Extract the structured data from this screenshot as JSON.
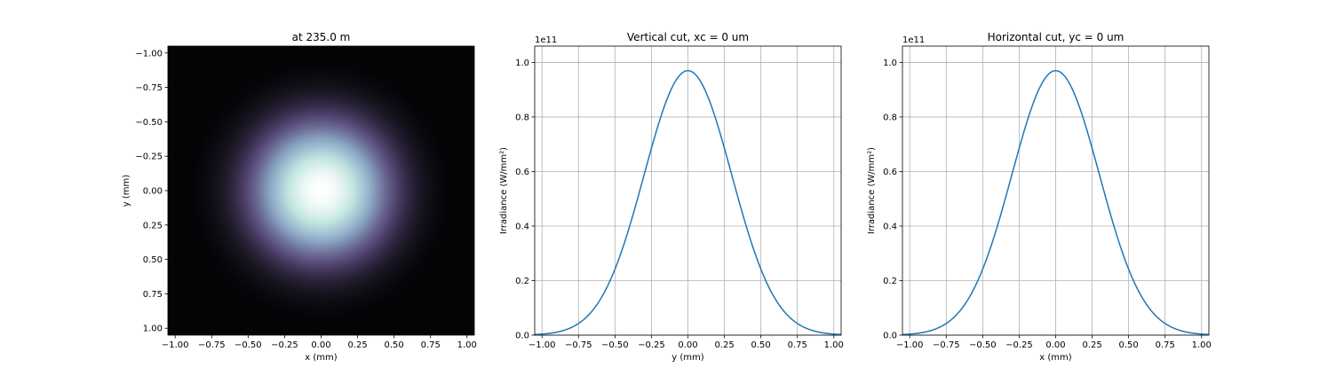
{
  "chart_data": [
    {
      "type": "heatmap",
      "title": "at 235.0 m",
      "xlabel": "x (mm)",
      "ylabel": "y (mm)",
      "xlim": [
        -1.05,
        1.05
      ],
      "ylim": [
        1.05,
        -1.05
      ],
      "x_ticks": [
        -1.0,
        -0.75,
        -0.5,
        -0.25,
        0.0,
        0.25,
        0.5,
        0.75,
        1.0
      ],
      "x_tick_labels": [
        "−1.00",
        "−0.75",
        "−0.50",
        "−0.25",
        "0.00",
        "0.25",
        "0.50",
        "0.75",
        "1.00"
      ],
      "y_ticks": [
        -1.0,
        -0.75,
        -0.5,
        -0.25,
        0.0,
        0.25,
        0.5,
        0.75,
        1.0
      ],
      "y_tick_labels": [
        "−1.00",
        "−0.75",
        "−0.50",
        "−0.25",
        "0.00",
        "0.25",
        "0.50",
        "0.75",
        "1.00"
      ],
      "center": [
        0.0,
        0.0
      ],
      "sigma_mm": 0.3,
      "colormap": [
        "#000000",
        "#584b7a",
        "#8ba6c4",
        "#c0e4e0",
        "#ffffff"
      ],
      "grid": false
    },
    {
      "type": "line",
      "title": "Vertical cut,  xc = 0 um",
      "xlabel": "y (mm)",
      "ylabel": "Irradiance (W/mm²)",
      "offset_text": "1e11",
      "xlim": [
        -1.05,
        1.05
      ],
      "ylim": [
        0,
        1.06
      ],
      "x_ticks": [
        -1.0,
        -0.75,
        -0.5,
        -0.25,
        0.0,
        0.25,
        0.5,
        0.75,
        1.0
      ],
      "x_tick_labels": [
        "−1.00",
        "−0.75",
        "−0.50",
        "−0.25",
        "0.00",
        "0.25",
        "0.50",
        "0.75",
        "1.00"
      ],
      "y_ticks": [
        0,
        0.2,
        0.4,
        0.6,
        0.8,
        1.0
      ],
      "y_tick_labels": [
        "0.0",
        "0.2",
        "0.4",
        "0.6",
        "0.8",
        "1.0"
      ],
      "grid": true,
      "series": [
        {
          "color": "#1f77b4",
          "x": [
            -1.05,
            -1.0,
            -0.9,
            -0.8,
            -0.75,
            -0.7,
            -0.6,
            -0.5,
            -0.4,
            -0.3,
            -0.25,
            -0.2,
            -0.1,
            0.0,
            0.1,
            0.2,
            0.25,
            0.3,
            0.4,
            0.5,
            0.6,
            0.7,
            0.75,
            0.8,
            0.9,
            1.0,
            1.05
          ],
          "y": [
            0.002,
            0.004,
            0.012,
            0.032,
            0.05,
            0.074,
            0.15,
            0.25,
            0.397,
            0.558,
            0.655,
            0.76,
            0.905,
            0.97,
            0.905,
            0.76,
            0.655,
            0.558,
            0.397,
            0.25,
            0.15,
            0.074,
            0.05,
            0.032,
            0.012,
            0.004,
            0.002
          ]
        }
      ]
    },
    {
      "type": "line",
      "title": "Horizontal cut, yc = 0 um",
      "xlabel": "x (mm)",
      "ylabel": "Irradiance (W/mm²)",
      "offset_text": "1e11",
      "xlim": [
        -1.05,
        1.05
      ],
      "ylim": [
        0,
        1.06
      ],
      "x_ticks": [
        -1.0,
        -0.75,
        -0.5,
        -0.25,
        0.0,
        0.25,
        0.5,
        0.75,
        1.0
      ],
      "x_tick_labels": [
        "−1.00",
        "−0.75",
        "−0.50",
        "−0.25",
        "0.00",
        "0.25",
        "0.50",
        "0.75",
        "1.00"
      ],
      "y_ticks": [
        0,
        0.2,
        0.4,
        0.6,
        0.8,
        1.0
      ],
      "y_tick_labels": [
        "0.0",
        "0.2",
        "0.4",
        "0.6",
        "0.8",
        "1.0"
      ],
      "grid": true,
      "series": [
        {
          "color": "#1f77b4",
          "x": [
            -1.05,
            -1.0,
            -0.9,
            -0.8,
            -0.75,
            -0.7,
            -0.6,
            -0.5,
            -0.4,
            -0.3,
            -0.25,
            -0.2,
            -0.1,
            0.0,
            0.1,
            0.2,
            0.25,
            0.3,
            0.4,
            0.5,
            0.6,
            0.7,
            0.75,
            0.8,
            0.9,
            1.0,
            1.05
          ],
          "y": [
            0.002,
            0.004,
            0.012,
            0.032,
            0.05,
            0.074,
            0.15,
            0.25,
            0.397,
            0.558,
            0.655,
            0.76,
            0.905,
            0.97,
            0.905,
            0.76,
            0.655,
            0.558,
            0.397,
            0.25,
            0.15,
            0.074,
            0.05,
            0.032,
            0.012,
            0.004,
            0.002
          ]
        }
      ]
    }
  ]
}
